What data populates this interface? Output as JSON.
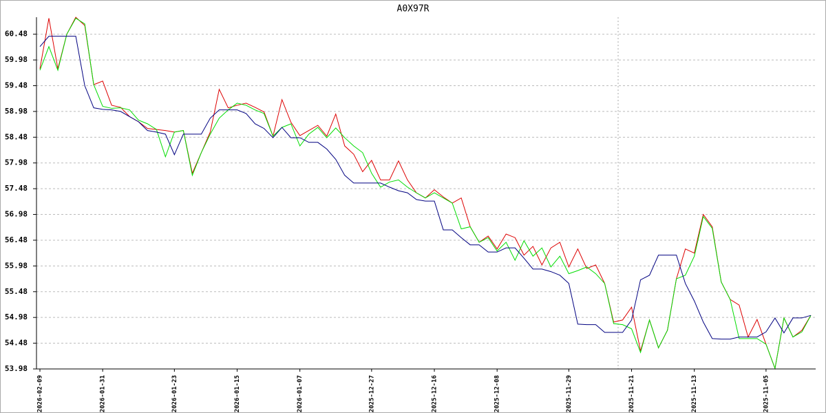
{
  "chart_data": {
    "type": "line",
    "title": "A0X97R",
    "categories": [
      "2026-02-09",
      null,
      null,
      null,
      null,
      null,
      null,
      "2026-01-31",
      null,
      null,
      null,
      null,
      null,
      null,
      null,
      "2026-01-23",
      null,
      null,
      null,
      null,
      null,
      null,
      "2026-01-15",
      null,
      null,
      null,
      null,
      null,
      null,
      "2026-01-07",
      null,
      null,
      null,
      null,
      null,
      null,
      null,
      "2025-12-27",
      null,
      null,
      null,
      null,
      null,
      null,
      "2025-12-16",
      null,
      null,
      null,
      null,
      null,
      null,
      "2025-12-08",
      null,
      null,
      null,
      null,
      null,
      null,
      null,
      "2025-11-29",
      null,
      null,
      null,
      null,
      null,
      null,
      "2025-11-21",
      null,
      null,
      null,
      null,
      null,
      null,
      "2025-11-13",
      null,
      null,
      null,
      null,
      null,
      null,
      null,
      "2025-11-05",
      null,
      null,
      null,
      null,
      null
    ],
    "series": [
      {
        "color": "#dd0000",
        "values": [
          59.81,
          60.79,
          59.81,
          60.48,
          60.81,
          60.65,
          59.5,
          59.57,
          59.1,
          59.06,
          58.88,
          58.78,
          58.65,
          58.63,
          58.61,
          58.58,
          58.61,
          57.78,
          58.18,
          58.58,
          59.41,
          59.05,
          59.1,
          59.14,
          59.06,
          58.97,
          58.5,
          59.21,
          58.77,
          58.51,
          58.61,
          58.71,
          58.5,
          58.93,
          58.31,
          58.15,
          57.81,
          58.03,
          57.65,
          57.65,
          58.02,
          57.65,
          57.4,
          57.3,
          57.46,
          57.32,
          57.2,
          57.3,
          56.74,
          56.44,
          56.56,
          56.31,
          56.6,
          56.53,
          56.19,
          56.36,
          56.0,
          56.33,
          56.44,
          55.96,
          56.31,
          55.93,
          56.0,
          55.64,
          54.89,
          54.93,
          55.18,
          54.33,
          54.93,
          54.39,
          54.73,
          55.73,
          56.31,
          56.23,
          56.98,
          56.74,
          55.67,
          55.33,
          55.22,
          54.6,
          54.94,
          54.46,
          53.99,
          54.97,
          54.6,
          54.73,
          55.02
        ]
      },
      {
        "color": "#00dd00",
        "values": [
          59.78,
          60.24,
          59.78,
          60.48,
          60.79,
          60.68,
          59.5,
          59.08,
          59.04,
          59.05,
          59.01,
          58.81,
          58.74,
          58.63,
          58.1,
          58.58,
          58.61,
          57.74,
          58.18,
          58.54,
          58.85,
          59.01,
          59.14,
          59.1,
          59.01,
          58.94,
          58.5,
          58.67,
          58.74,
          58.31,
          58.54,
          58.67,
          58.47,
          58.66,
          58.47,
          58.31,
          58.18,
          57.78,
          57.51,
          57.61,
          57.65,
          57.51,
          57.4,
          57.3,
          57.4,
          57.3,
          57.2,
          56.7,
          56.74,
          56.44,
          56.53,
          56.27,
          56.44,
          56.09,
          56.47,
          56.17,
          56.33,
          55.96,
          56.17,
          55.83,
          55.89,
          55.96,
          55.83,
          55.64,
          54.86,
          54.84,
          54.76,
          54.3,
          54.93,
          54.39,
          54.73,
          55.73,
          55.8,
          56.17,
          56.94,
          56.71,
          55.67,
          55.33,
          54.57,
          54.57,
          54.57,
          54.46,
          53.99,
          54.97,
          54.6,
          54.7,
          55.02
        ]
      },
      {
        "color": "#000080",
        "values": [
          60.24,
          60.44,
          60.44,
          60.44,
          60.44,
          59.48,
          59.05,
          59.02,
          59.01,
          58.98,
          58.88,
          58.78,
          58.61,
          58.58,
          58.54,
          58.14,
          58.54,
          58.54,
          58.54,
          58.85,
          59.01,
          59.01,
          59.01,
          58.94,
          58.74,
          58.65,
          58.47,
          58.67,
          58.47,
          58.47,
          58.38,
          58.38,
          58.25,
          58.05,
          57.74,
          57.59,
          57.59,
          57.59,
          57.59,
          57.51,
          57.44,
          57.4,
          57.27,
          57.24,
          57.24,
          56.68,
          56.68,
          56.53,
          56.39,
          56.39,
          56.25,
          56.25,
          56.33,
          56.33,
          56.13,
          55.92,
          55.92,
          55.87,
          55.8,
          55.64,
          54.85,
          54.84,
          54.84,
          54.69,
          54.69,
          54.69,
          54.93,
          55.71,
          55.8,
          56.19,
          56.19,
          56.19,
          55.64,
          55.3,
          54.89,
          54.57,
          54.56,
          54.56,
          54.6,
          54.6,
          54.6,
          54.7,
          54.97,
          54.68,
          54.97,
          54.97,
          55.02
        ]
      }
    ],
    "ylim": [
      53.98,
      60.81
    ],
    "yticks": [
      53.98,
      54.48,
      54.98,
      55.48,
      55.98,
      56.48,
      56.98,
      57.48,
      57.98,
      58.48,
      58.98,
      59.48,
      59.98,
      60.48
    ],
    "grid": true
  }
}
